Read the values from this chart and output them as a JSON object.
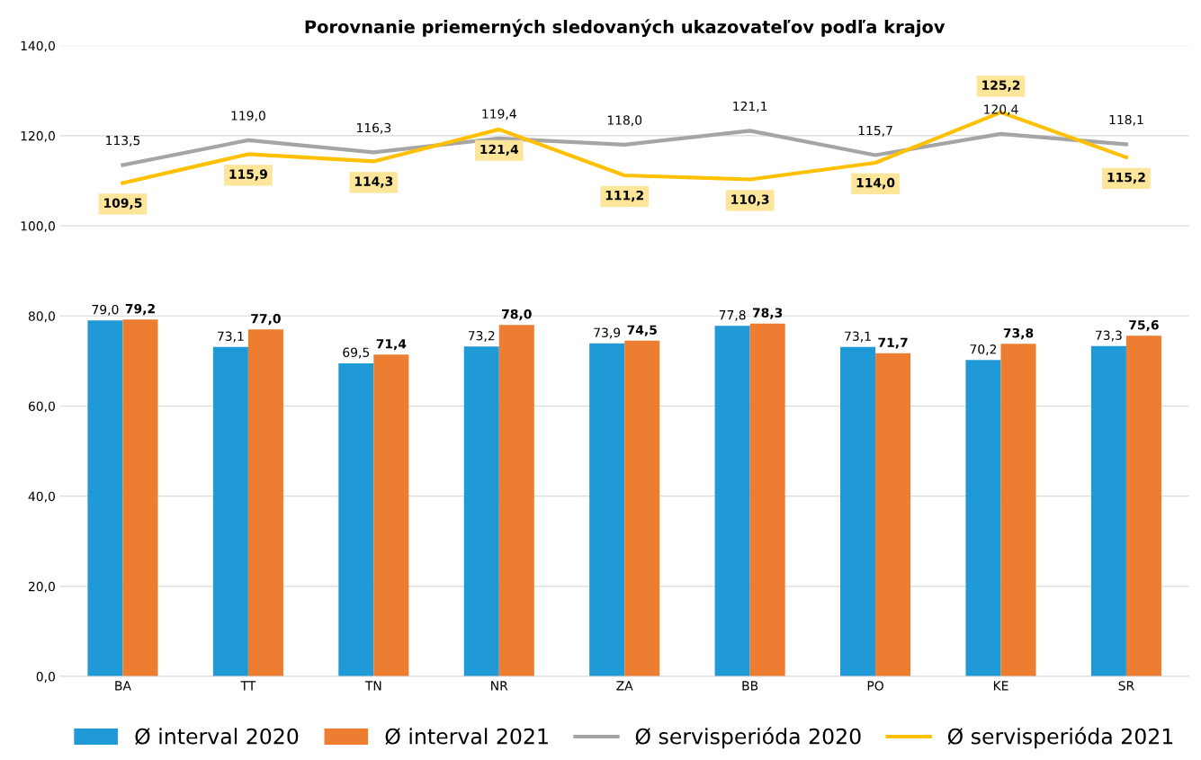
{
  "chart_data": {
    "type": "bar",
    "title": "Porovnanie priemerných sledovaných ukazovateľov podľa krajov",
    "categories": [
      "BA",
      "TT",
      "TN",
      "NR",
      "ZA",
      "BB",
      "PO",
      "KE",
      "SR"
    ],
    "series": [
      {
        "name": "Ø interval 2020",
        "color": "#209ad6",
        "values": [
          79.0,
          73.1,
          69.5,
          73.2,
          73.9,
          77.8,
          73.1,
          70.2,
          73.3
        ],
        "value_labels": [
          "79,0",
          "73,1",
          "69,5",
          "73,2",
          "73,9",
          "77,8",
          "73,1",
          "70,2",
          "73,3"
        ]
      },
      {
        "name": "Ø interval 2021",
        "color": "#ed7d31",
        "values": [
          79.2,
          77.0,
          71.4,
          78.0,
          74.5,
          78.3,
          71.7,
          73.8,
          75.6
        ],
        "value_labels": [
          "79,2",
          "77,0",
          "71,4",
          "78,0",
          "74,5",
          "78,3",
          "71,7",
          "73,8",
          "75,6"
        ]
      },
      {
        "name": "Ø servisperióda 2020",
        "type": "line",
        "color": "#a5a5a5",
        "values": [
          113.5,
          119.0,
          116.3,
          119.4,
          118.0,
          121.1,
          115.7,
          120.4,
          118.1
        ],
        "value_labels": [
          "113,5",
          "119,0",
          "116,3",
          "119,4",
          "118,0",
          "121,1",
          "115,7",
          "120,4",
          "118,1"
        ]
      },
      {
        "name": "Ø servisperióda 2021",
        "type": "line",
        "color": "#ffc000",
        "values": [
          109.5,
          115.9,
          114.3,
          121.4,
          111.2,
          110.3,
          114.0,
          125.2,
          115.2
        ],
        "value_labels": [
          "109,5",
          "115,9",
          "114,3",
          "121,4",
          "111,2",
          "110,3",
          "114,0",
          "125,2",
          "115,2"
        ]
      }
    ],
    "ylim": [
      0,
      140
    ],
    "yticks": [
      {
        "value": 0,
        "label": "0,0"
      },
      {
        "value": 20,
        "label": "20,0"
      },
      {
        "value": 40,
        "label": "40,0"
      },
      {
        "value": 60,
        "label": "60,0"
      },
      {
        "value": 80,
        "label": "80,0"
      },
      {
        "value": 100,
        "label": "100,0"
      },
      {
        "value": 120,
        "label": "120,0"
      },
      {
        "value": 140,
        "label": "140,0"
      }
    ],
    "grid": "y",
    "legend": "bottom",
    "marker": "none",
    "line_style": "solid"
  }
}
